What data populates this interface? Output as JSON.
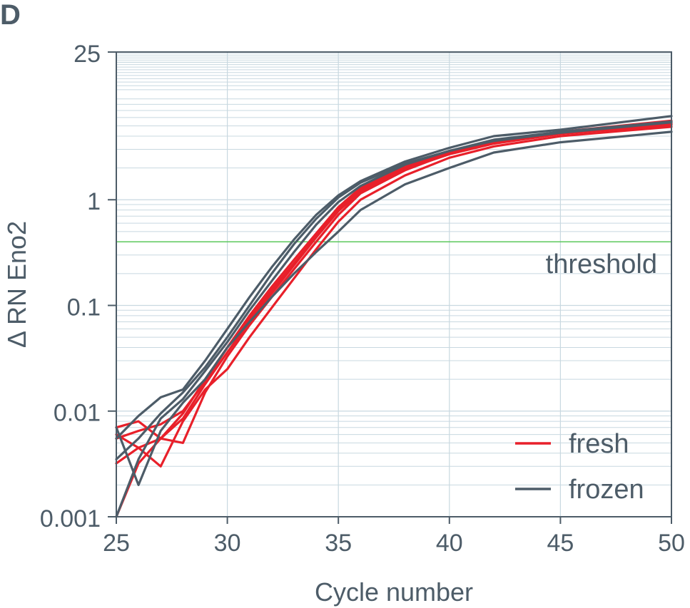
{
  "panel_label": "D",
  "colors": {
    "fresh": "#e8202a",
    "frozen": "#4d5c68",
    "threshold": "#5cc85c",
    "grid": "#c8d8e0",
    "axis": "#4d5c68",
    "text": "#4d5c68"
  },
  "chart_data": {
    "type": "line",
    "title": "",
    "xlabel": "Cycle number",
    "ylabel": "Δ RN Eno2",
    "xlim": [
      25,
      50
    ],
    "ylim": [
      0.001,
      25
    ],
    "yscale": "log",
    "grid": true,
    "x_ticks": [
      25,
      30,
      35,
      40,
      45,
      50
    ],
    "y_ticks": [
      0.001,
      0.01,
      0.1,
      1,
      25
    ],
    "x_tick_labels": [
      "25",
      "30",
      "35",
      "40",
      "45",
      "50"
    ],
    "y_tick_labels": [
      "0.001",
      "0.01",
      "0.1",
      "1",
      "25"
    ],
    "threshold": {
      "value": 0.4,
      "label": "threshold"
    },
    "legend": {
      "placement": "bottom-right",
      "entries": [
        {
          "label": "fresh",
          "group": "fresh"
        },
        {
          "label": "frozen",
          "group": "frozen"
        }
      ]
    },
    "series": [
      {
        "group": "fresh",
        "x": [
          25,
          26,
          27,
          28,
          29,
          30,
          31,
          32,
          33,
          34,
          35,
          36,
          38,
          40,
          42,
          45,
          50
        ],
        "y": [
          0.0032,
          0.0045,
          0.0055,
          0.0095,
          0.02,
          0.04,
          0.075,
          0.14,
          0.25,
          0.45,
          0.8,
          1.25,
          2.0,
          2.8,
          3.5,
          4.3,
          5.2
        ]
      },
      {
        "group": "fresh",
        "x": [
          25,
          26,
          27,
          28,
          29,
          30,
          31,
          32,
          33,
          34,
          35,
          36,
          38,
          40,
          42,
          45,
          50
        ],
        "y": [
          0.001,
          0.0032,
          0.0055,
          0.0085,
          0.018,
          0.036,
          0.07,
          0.13,
          0.24,
          0.44,
          0.78,
          1.2,
          1.95,
          2.7,
          3.4,
          4.2,
          5.1
        ]
      },
      {
        "group": "fresh",
        "x": [
          25,
          26,
          27,
          28,
          29,
          30,
          31,
          32,
          33,
          34,
          35,
          36,
          38,
          40,
          42,
          45,
          50
        ],
        "y": [
          0.007,
          0.008,
          0.0055,
          0.005,
          0.015,
          0.033,
          0.065,
          0.12,
          0.22,
          0.4,
          0.72,
          1.15,
          1.9,
          2.75,
          3.5,
          4.3,
          5.3
        ]
      },
      {
        "group": "fresh",
        "x": [
          25,
          26,
          27,
          28,
          29,
          30,
          31,
          32,
          33,
          34,
          35,
          36,
          38,
          40,
          42,
          45,
          50
        ],
        "y": [
          0.006,
          0.0045,
          0.003,
          0.008,
          0.016,
          0.025,
          0.05,
          0.095,
          0.18,
          0.34,
          0.62,
          1.0,
          1.7,
          2.5,
          3.2,
          4.0,
          4.9
        ]
      },
      {
        "group": "fresh",
        "x": [
          25,
          26,
          27,
          28,
          29,
          30,
          31,
          32,
          33,
          34,
          35,
          36,
          38,
          40,
          42,
          45,
          50
        ],
        "y": [
          0.0055,
          0.0065,
          0.0075,
          0.01,
          0.019,
          0.04,
          0.08,
          0.15,
          0.27,
          0.48,
          0.85,
          1.3,
          2.1,
          2.9,
          3.6,
          4.4,
          5.6
        ]
      },
      {
        "group": "frozen",
        "x": [
          25,
          26,
          27,
          28,
          29,
          30,
          31,
          32,
          33,
          34,
          35,
          36,
          38,
          40,
          42,
          45,
          50
        ],
        "y": [
          0.0055,
          0.009,
          0.0135,
          0.016,
          0.03,
          0.06,
          0.12,
          0.23,
          0.42,
          0.72,
          1.1,
          1.5,
          2.3,
          3.1,
          4.0,
          4.6,
          6.2
        ]
      },
      {
        "group": "frozen",
        "x": [
          25,
          26,
          27,
          28,
          29,
          30,
          31,
          32,
          33,
          34,
          35,
          36,
          38,
          40,
          42,
          45,
          50
        ],
        "y": [
          0.0035,
          0.0055,
          0.0095,
          0.015,
          0.026,
          0.05,
          0.1,
          0.2,
          0.38,
          0.66,
          1.05,
          1.45,
          2.2,
          2.9,
          3.7,
          4.4,
          5.5
        ]
      },
      {
        "group": "frozen",
        "x": [
          25,
          26,
          27,
          28,
          29,
          30,
          31,
          32,
          33,
          34,
          35,
          36,
          38,
          40,
          42,
          45,
          50
        ],
        "y": [
          0.007,
          0.002,
          0.0065,
          0.012,
          0.02,
          0.04,
          0.07,
          0.12,
          0.2,
          0.32,
          0.5,
          0.8,
          1.4,
          2.0,
          2.8,
          3.5,
          4.4
        ]
      },
      {
        "group": "frozen",
        "x": [
          25,
          26,
          27,
          28,
          29,
          30,
          31,
          32,
          33,
          34,
          35,
          36,
          38,
          40,
          42,
          45,
          50
        ],
        "y": [
          0.001,
          0.0035,
          0.0085,
          0.013,
          0.024,
          0.045,
          0.09,
          0.17,
          0.32,
          0.58,
          0.95,
          1.35,
          2.15,
          2.9,
          3.6,
          4.3,
          5.4
        ]
      }
    ]
  }
}
